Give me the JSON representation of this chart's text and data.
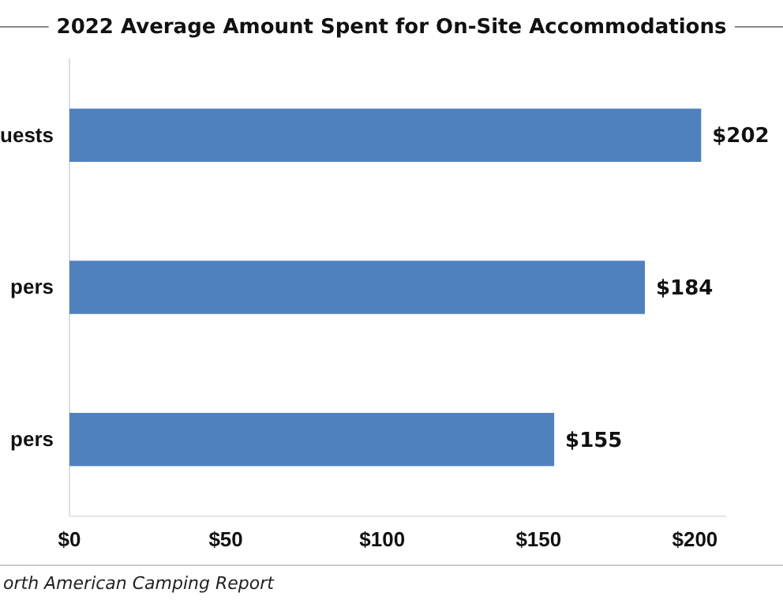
{
  "chart_data": {
    "type": "bar",
    "orientation": "horizontal",
    "title": "2022 Average Amount Spent for On-Site Accommodations",
    "categories": [
      "uests",
      "pers",
      "pers"
    ],
    "values": [
      202,
      184,
      155
    ],
    "color": "#4f81bd",
    "xlim": [
      0,
      210
    ],
    "xticks": [
      {
        "value": 0,
        "label": "$0"
      },
      {
        "value": 50,
        "label": "$50"
      },
      {
        "value": 100,
        "label": "$100"
      },
      {
        "value": 150,
        "label": "$150"
      },
      {
        "value": 200,
        "label": "$200"
      }
    ],
    "value_labels": [
      "$202",
      "$184",
      "$155"
    ],
    "grid": false,
    "annotations": [
      "orth American Camping Report"
    ]
  }
}
